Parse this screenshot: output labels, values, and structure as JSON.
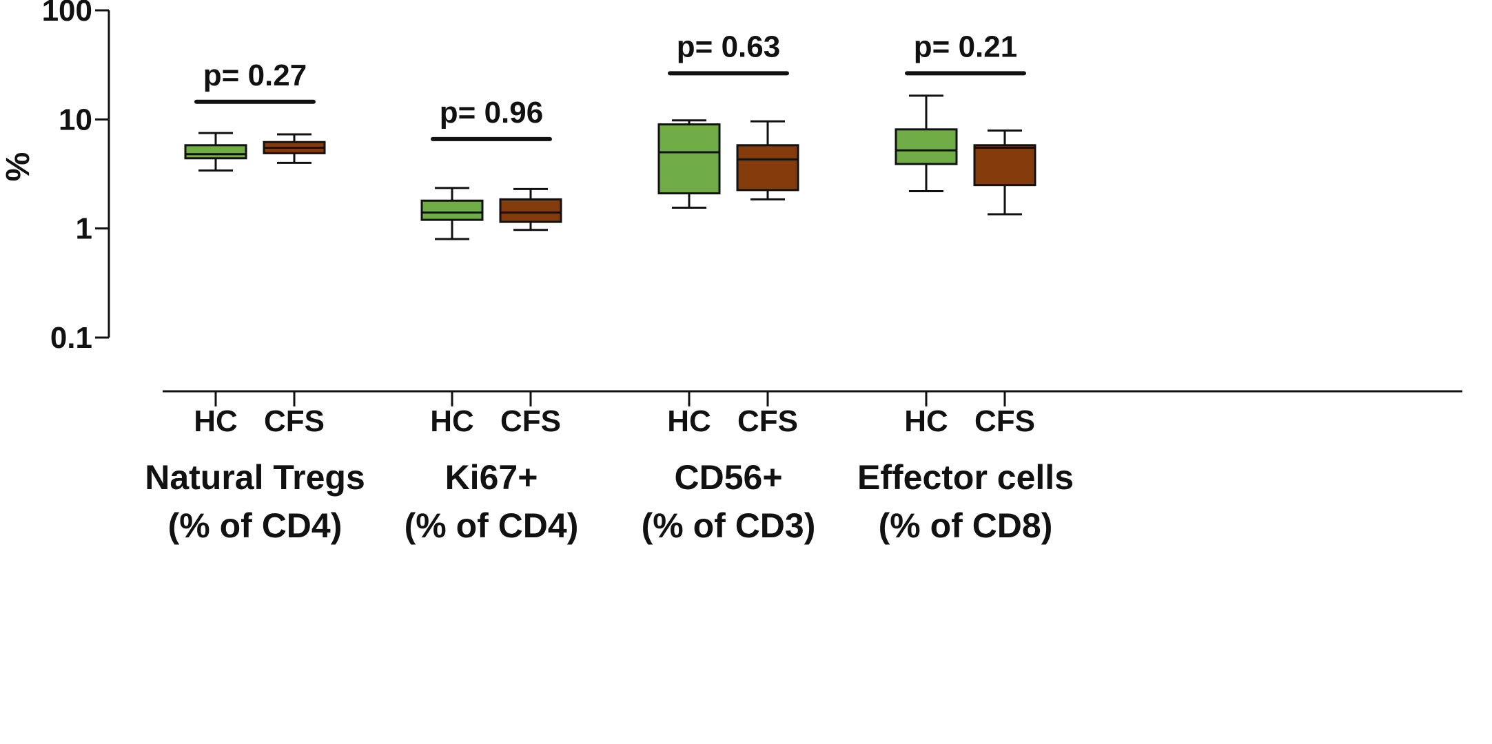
{
  "chart_data": {
    "type": "box",
    "y_axis": {
      "label": "%",
      "scale": "log",
      "ylim": [
        0.1,
        100
      ],
      "ticks": [
        {
          "value": 0.1,
          "label": "0.1"
        },
        {
          "value": 1,
          "label": "1"
        },
        {
          "value": 10,
          "label": "10"
        },
        {
          "value": 100,
          "label": "100"
        }
      ]
    },
    "series_colors": {
      "HC": "#70ad47",
      "CFS": "#843c0c"
    },
    "groups": [
      {
        "name_line1": "Natural Tregs",
        "name_line2": "(% of CD4)",
        "p_value": "p= 0.27",
        "boxes": [
          {
            "category": "HC",
            "min": 3.4,
            "q1": 4.4,
            "median": 4.8,
            "q3": 5.8,
            "max": 7.5
          },
          {
            "category": "CFS",
            "min": 4.0,
            "q1": 4.9,
            "median": 5.5,
            "q3": 6.2,
            "max": 7.3
          }
        ]
      },
      {
        "name_line1": "Ki67+",
        "name_line2": "(% of CD4)",
        "p_value": "p= 0.96",
        "boxes": [
          {
            "category": "HC",
            "min": 0.8,
            "q1": 1.2,
            "median": 1.4,
            "q3": 1.8,
            "max": 2.35
          },
          {
            "category": "CFS",
            "min": 0.97,
            "q1": 1.15,
            "median": 1.4,
            "q3": 1.85,
            "max": 2.3
          }
        ]
      },
      {
        "name_line1": "CD56+",
        "name_line2": "(% of CD3)",
        "p_value": "p= 0.63",
        "boxes": [
          {
            "category": "HC",
            "min": 1.55,
            "q1": 2.1,
            "median": 5.0,
            "q3": 9.0,
            "max": 9.8
          },
          {
            "category": "CFS",
            "min": 1.85,
            "q1": 2.25,
            "median": 4.3,
            "q3": 5.8,
            "max": 9.6
          }
        ]
      },
      {
        "name_line1": "Effector cells",
        "name_line2": "(% of CD8)",
        "p_value": "p= 0.21",
        "boxes": [
          {
            "category": "HC",
            "min": 2.2,
            "q1": 3.9,
            "median": 5.2,
            "q3": 8.1,
            "max": 16.5
          },
          {
            "category": "CFS",
            "min": 1.35,
            "q1": 2.5,
            "median": 5.5,
            "q3": 5.8,
            "max": 7.9
          }
        ]
      }
    ],
    "significance_level": [
      {
        "group": 0,
        "value": 14.5
      },
      {
        "group": 1,
        "value": 6.6
      },
      {
        "group": 2,
        "value": 26.5
      },
      {
        "group": 3,
        "value": 26.5
      }
    ]
  }
}
